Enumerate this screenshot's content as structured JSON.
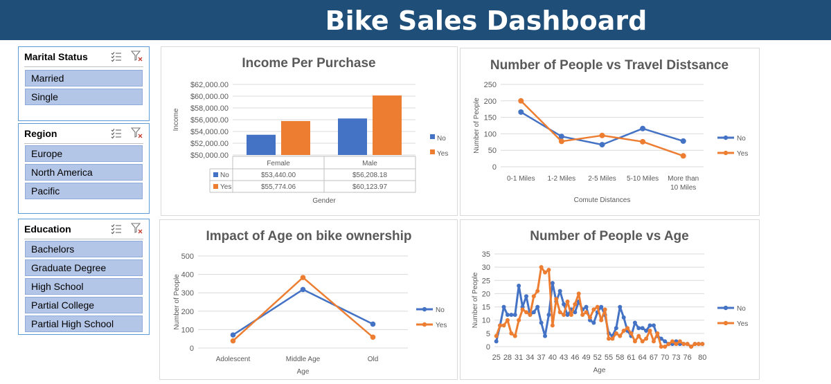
{
  "header": {
    "title": "Bike Sales Dashboard"
  },
  "slicers": {
    "marital": {
      "title": "Marital Status",
      "items": [
        "Married",
        "Single"
      ]
    },
    "region": {
      "title": "Region",
      "items": [
        "Europe",
        "North America",
        "Pacific"
      ]
    },
    "education": {
      "title": "Education",
      "items": [
        "Bachelors",
        "Graduate Degree",
        "High School",
        "Partial College",
        "Partial High School"
      ]
    }
  },
  "colors": {
    "no": "#4472c4",
    "yes": "#ed7d31",
    "header": "#1f4e79",
    "slicer_item": "#b4c6e7"
  },
  "chart_data": [
    {
      "id": "income",
      "type": "bar",
      "title": "Income Per Purchase",
      "xlabel": "Gender",
      "ylabel": "Income",
      "categories": [
        "Female",
        "Male"
      ],
      "series": [
        {
          "name": "No",
          "values": [
            53440.0,
            56208.18
          ]
        },
        {
          "name": "Yes",
          "values": [
            55774.06,
            60123.97
          ]
        }
      ],
      "ylim": [
        50000,
        62000
      ],
      "yticks": [
        50000,
        52000,
        54000,
        56000,
        58000,
        60000,
        62000
      ],
      "ytick_labels": [
        "$50,000.00",
        "$52,000.00",
        "$54,000.00",
        "$56,000.00",
        "$58,000.00",
        "$60,000.00",
        "$62,000.00"
      ],
      "table": {
        "No": [
          "$53,440.00",
          "$56,208.18"
        ],
        "Yes": [
          "$55,774.06",
          "$60,123.97"
        ]
      },
      "legend": "right",
      "grid": true
    },
    {
      "id": "distance",
      "type": "line",
      "title": "Number of People vs Travel Distsance",
      "xlabel": "Comute Distances",
      "ylabel": "Number of People",
      "categories": [
        "0-1 Miles",
        "1-2 Miles",
        "2-5 Miles",
        "5-10 Miles",
        "More than 10 Miles"
      ],
      "series": [
        {
          "name": "No",
          "values": [
            166,
            92,
            67,
            116,
            78
          ]
        },
        {
          "name": "Yes",
          "values": [
            200,
            77,
            95,
            76,
            33
          ]
        }
      ],
      "ylim": [
        0,
        250
      ],
      "yticks": [
        0,
        50,
        100,
        150,
        200,
        250
      ],
      "legend": "right",
      "grid": true
    },
    {
      "id": "agegroup",
      "type": "line",
      "title": "Impact of Age on bike ownership",
      "xlabel": "Age",
      "ylabel": "Number of People",
      "categories": [
        "Adolescent",
        "Middle Age",
        "Old"
      ],
      "series": [
        {
          "name": "No",
          "values": [
            71,
            318,
            130
          ]
        },
        {
          "name": "Yes",
          "values": [
            39,
            383,
            59
          ]
        }
      ],
      "ylim": [
        0,
        500
      ],
      "yticks": [
        0,
        100,
        200,
        300,
        400,
        500
      ],
      "legend": "right",
      "grid": true
    },
    {
      "id": "age",
      "type": "line",
      "title": "Number of People vs Age",
      "xlabel": "Age",
      "ylabel": "Number of People",
      "x": [
        25,
        26,
        27,
        28,
        29,
        30,
        31,
        32,
        33,
        34,
        35,
        36,
        37,
        38,
        39,
        40,
        41,
        42,
        43,
        44,
        45,
        46,
        47,
        48,
        49,
        50,
        51,
        52,
        53,
        54,
        55,
        56,
        57,
        58,
        59,
        60,
        61,
        62,
        63,
        64,
        65,
        66,
        67,
        68,
        69,
        70,
        71,
        72,
        73,
        74,
        75,
        76,
        77,
        78,
        79,
        80
      ],
      "xtick_labels": [
        "25",
        "28",
        "31",
        "34",
        "37",
        "40",
        "43",
        "46",
        "49",
        "52",
        "55",
        "58",
        "61",
        "64",
        "67",
        "70",
        "73",
        "76",
        "80"
      ],
      "series": [
        {
          "name": "No",
          "values": [
            2,
            8,
            15,
            12,
            12,
            12,
            23,
            15,
            19,
            12,
            13,
            15,
            9,
            4,
            12,
            24,
            17,
            21,
            16,
            12,
            14,
            13,
            17,
            14,
            15,
            10,
            9,
            13,
            15,
            12,
            5,
            4,
            7,
            15,
            11,
            6,
            4,
            9,
            7,
            7,
            6,
            8,
            8,
            4,
            3,
            2,
            1,
            1,
            2,
            1,
            1,
            1,
            0,
            1,
            1,
            1
          ]
        },
        {
          "name": "Yes",
          "values": [
            4,
            8,
            8,
            10,
            5,
            4,
            10,
            14,
            13,
            12,
            19,
            21,
            30,
            28,
            29,
            8,
            18,
            13,
            12,
            17,
            12,
            16,
            20,
            12,
            13,
            11,
            14,
            15,
            10,
            14,
            3,
            3,
            5,
            4,
            6,
            7,
            5,
            2,
            4,
            2,
            3,
            6,
            2,
            5,
            0,
            0,
            1,
            2,
            1,
            2,
            1,
            1,
            0,
            1,
            1,
            1
          ]
        }
      ],
      "ylim": [
        0,
        35
      ],
      "yticks": [
        0,
        5,
        10,
        15,
        20,
        25,
        30,
        35
      ],
      "legend": "right",
      "grid": true
    }
  ]
}
